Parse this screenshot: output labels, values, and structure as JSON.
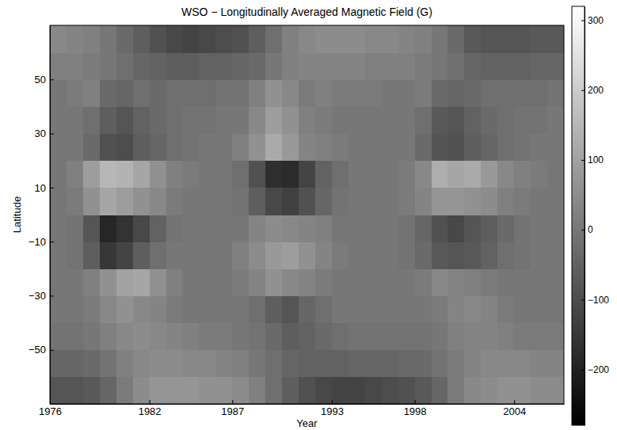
{
  "chart_data": {
    "type": "heatmap",
    "title": "WSO − Longitudinally Averaged Magnetic Field (G)",
    "xlabel": "Year",
    "ylabel": "Latitude",
    "xbins": [
      1976,
      1977,
      1978,
      1979,
      1980,
      1981,
      1982,
      1983,
      1984,
      1985,
      1986,
      1987,
      1988,
      1989,
      1990,
      1991,
      1992,
      1993,
      1994,
      1995,
      1996,
      1997,
      1998,
      1999,
      2000,
      2001,
      2002,
      2003,
      2004,
      2005,
      2006,
      2007
    ],
    "ybins": [
      -70,
      -60,
      -50,
      -40,
      -30,
      -20,
      -10,
      0,
      10,
      20,
      30,
      40,
      50,
      60,
      70
    ],
    "z": [
      [
        -80,
        -80,
        -70,
        -40,
        10,
        50,
        70,
        70,
        70,
        60,
        60,
        50,
        20,
        -20,
        -60,
        -90,
        -110,
        -120,
        -120,
        -110,
        -100,
        -90,
        -70,
        -40,
        10,
        40,
        50,
        60,
        60,
        50,
        50
      ],
      [
        -40,
        -40,
        -30,
        -10,
        20,
        40,
        50,
        50,
        40,
        40,
        30,
        20,
        0,
        -20,
        -40,
        -50,
        -50,
        -50,
        -40,
        -40,
        -40,
        -30,
        -30,
        -10,
        10,
        30,
        40,
        40,
        40,
        30,
        30
      ],
      [
        -10,
        -10,
        0,
        20,
        40,
        50,
        40,
        30,
        20,
        10,
        10,
        0,
        -10,
        -30,
        -60,
        -50,
        -30,
        -20,
        -10,
        -10,
        -10,
        -10,
        -10,
        0,
        20,
        30,
        30,
        20,
        10,
        10,
        10
      ],
      [
        0,
        0,
        10,
        40,
        60,
        40,
        30,
        10,
        0,
        0,
        0,
        0,
        -20,
        -60,
        -80,
        -40,
        -20,
        0,
        0,
        0,
        0,
        0,
        0,
        10,
        30,
        40,
        30,
        10,
        0,
        0,
        0
      ],
      [
        0,
        0,
        20,
        60,
        100,
        110,
        60,
        20,
        0,
        0,
        0,
        10,
        30,
        60,
        40,
        30,
        10,
        0,
        0,
        0,
        0,
        0,
        10,
        40,
        30,
        20,
        10,
        0,
        0,
        0,
        0
      ],
      [
        0,
        -10,
        -60,
        -150,
        -120,
        -60,
        -20,
        0,
        0,
        0,
        0,
        20,
        50,
        80,
        90,
        60,
        30,
        10,
        0,
        0,
        0,
        -10,
        -30,
        -70,
        -80,
        -70,
        -50,
        -20,
        -10,
        0,
        0
      ],
      [
        0,
        -10,
        -80,
        -190,
        -160,
        -110,
        -50,
        -10,
        0,
        0,
        0,
        0,
        30,
        50,
        40,
        30,
        20,
        0,
        0,
        0,
        0,
        -10,
        -40,
        -90,
        -110,
        -80,
        -60,
        -30,
        -10,
        0,
        0
      ],
      [
        0,
        10,
        60,
        110,
        90,
        60,
        40,
        10,
        0,
        0,
        0,
        -10,
        -60,
        -110,
        -130,
        -90,
        -40,
        -10,
        0,
        0,
        0,
        10,
        30,
        70,
        70,
        60,
        50,
        20,
        10,
        0,
        0
      ],
      [
        0,
        20,
        90,
        150,
        140,
        110,
        60,
        20,
        10,
        0,
        0,
        -20,
        -90,
        -170,
        -180,
        -120,
        -50,
        -20,
        0,
        0,
        0,
        10,
        40,
        130,
        110,
        120,
        80,
        40,
        20,
        10,
        0
      ],
      [
        0,
        0,
        -30,
        -90,
        -100,
        -60,
        -40,
        -20,
        -10,
        0,
        0,
        20,
        60,
        120,
        80,
        30,
        20,
        10,
        0,
        0,
        0,
        0,
        -30,
        -80,
        -90,
        -60,
        -40,
        -20,
        -10,
        0,
        0
      ],
      [
        0,
        0,
        -20,
        -60,
        -80,
        -50,
        -30,
        -20,
        -10,
        -10,
        0,
        0,
        40,
        90,
        60,
        20,
        10,
        0,
        0,
        0,
        0,
        0,
        -20,
        -70,
        -80,
        -50,
        -30,
        -20,
        -10,
        -10,
        0
      ],
      [
        0,
        10,
        20,
        -30,
        -40,
        -20,
        -30,
        -20,
        -20,
        -20,
        -10,
        -10,
        20,
        60,
        40,
        10,
        20,
        10,
        10,
        10,
        0,
        0,
        10,
        -30,
        -40,
        -30,
        -20,
        -20,
        -20,
        -20,
        -10
      ],
      [
        20,
        20,
        10,
        0,
        -20,
        -40,
        -50,
        -60,
        -60,
        -50,
        -50,
        -40,
        -30,
        0,
        20,
        30,
        30,
        30,
        30,
        20,
        20,
        20,
        10,
        0,
        -20,
        -40,
        -50,
        -50,
        -50,
        -40,
        -40
      ],
      [
        40,
        30,
        20,
        0,
        -30,
        -60,
        -90,
        -110,
        -120,
        -110,
        -100,
        -90,
        -60,
        -20,
        20,
        40,
        50,
        50,
        50,
        40,
        40,
        30,
        20,
        0,
        -30,
        -70,
        -80,
        -80,
        -80,
        -70,
        -70
      ]
    ],
    "xlim": [
      1976,
      2007
    ],
    "ylim": [
      -70,
      70
    ],
    "xticks": [
      1976,
      1982,
      1987,
      1993,
      1998,
      2004
    ],
    "yticks": [
      {
        "value": -50,
        "label": "−50"
      },
      {
        "value": -30,
        "label": "−30"
      },
      {
        "value": -10,
        "label": "−10"
      },
      10,
      30,
      50
    ],
    "zlim": [
      -280,
      320
    ],
    "zticks": [
      {
        "value": -200,
        "label": "−200"
      },
      {
        "value": -100,
        "label": "−100"
      },
      0,
      100,
      200,
      300
    ]
  }
}
